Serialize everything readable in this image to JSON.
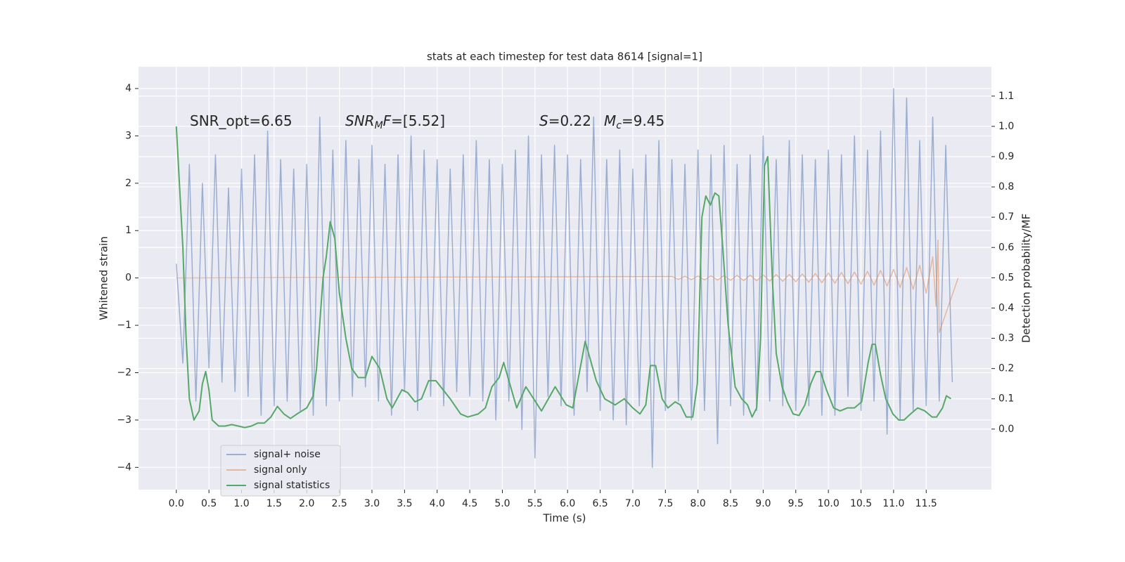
{
  "chart_data": {
    "type": "line",
    "title": "stats at each timestep for test data 8614 [signal=1]",
    "xlabel": "Time (s)",
    "ylabel": "Whitened strain",
    "y2label": "Detection probability/MF",
    "xlim": [
      -0.58,
      12.5
    ],
    "ylim": [
      -4.47,
      4.46
    ],
    "y2lim": [
      -0.2,
      1.197
    ],
    "xticks": [
      {
        "value": 0,
        "label": "0.0"
      },
      0.5,
      {
        "value": 1,
        "label": "1.0"
      },
      1.5,
      {
        "value": 2,
        "label": "2.0"
      },
      2.5,
      {
        "value": 3,
        "label": "3.0"
      },
      3.5,
      {
        "value": 4,
        "label": "4.0"
      },
      4.5,
      {
        "value": 5,
        "label": "5.0"
      },
      5.5,
      {
        "value": 6,
        "label": "6.0"
      },
      6.5,
      {
        "value": 7,
        "label": "7.0"
      },
      7.5,
      {
        "value": 8,
        "label": "8.0"
      },
      8.5,
      {
        "value": 9,
        "label": "9.0"
      },
      9.5,
      {
        "value": 10,
        "label": "10.0"
      },
      10.5,
      {
        "value": 11,
        "label": "11.0"
      },
      11.5
    ],
    "yticks": [
      {
        "value": -4,
        "label": "−4"
      },
      {
        "value": -3,
        "label": "−3"
      },
      {
        "value": -2,
        "label": "−2"
      },
      {
        "value": -1,
        "label": "−1"
      },
      0,
      1,
      2,
      3,
      4
    ],
    "y2ticks": [
      {
        "value": 0,
        "label": "0.0"
      },
      0.1,
      0.2,
      0.3,
      0.4,
      0.5,
      0.6,
      0.7,
      0.8,
      0.9,
      {
        "value": 1,
        "label": "1.0"
      },
      1.1
    ],
    "grid": true,
    "legend": "lower left",
    "annotations": [
      {
        "parts": [
          {
            "text": "SNR_opt=6.65"
          }
        ]
      },
      {
        "parts": [
          {
            "text": "SNR",
            "style": "italic"
          },
          {
            "text": "M",
            "style": "sub"
          },
          {
            "text": "F",
            "style": "italic"
          },
          {
            "text": "=[5.52]"
          }
        ]
      },
      {
        "parts": [
          {
            "text": "S",
            "style": "italic"
          },
          {
            "text": "=0.22"
          }
        ]
      },
      {
        "parts": [
          {
            "text": "M",
            "style": "italic"
          },
          {
            "text": "c",
            "style": "sub"
          },
          {
            "text": "=9.45"
          }
        ]
      }
    ],
    "series": [
      {
        "name": "signal+ noise",
        "color": "#4c72b0",
        "opacity": 0.5,
        "x": [
          0,
          0.1,
          0.2,
          0.3,
          0.4,
          0.5,
          0.6,
          0.7,
          0.8,
          0.9,
          1,
          1.1,
          1.2,
          1.3,
          1.4,
          1.5,
          1.6,
          1.7,
          1.8,
          1.9,
          2,
          2.1,
          2.2,
          2.3,
          2.4,
          2.5,
          2.6,
          2.7,
          2.8,
          2.9,
          3,
          3.1,
          3.2,
          3.3,
          3.4,
          3.5,
          3.6,
          3.7,
          3.8,
          3.9,
          4,
          4.1,
          4.2,
          4.3,
          4.4,
          4.5,
          4.6,
          4.7,
          4.8,
          4.9,
          5,
          5.1,
          5.2,
          5.3,
          5.4,
          5.5,
          5.6,
          5.7,
          5.8,
          5.9,
          6,
          6.1,
          6.2,
          6.3,
          6.4,
          6.5,
          6.6,
          6.7,
          6.8,
          6.9,
          7,
          7.1,
          7.2,
          7.3,
          7.4,
          7.5,
          7.6,
          7.7,
          7.8,
          7.9,
          8,
          8.1,
          8.2,
          8.3,
          8.4,
          8.5,
          8.6,
          8.7,
          8.8,
          8.9,
          9,
          9.1,
          9.2,
          9.3,
          9.4,
          9.5,
          9.6,
          9.7,
          9.8,
          9.9,
          10,
          10.1,
          10.2,
          10.3,
          10.4,
          10.5,
          10.6,
          10.7,
          10.8,
          10.9,
          11,
          11.1,
          11.2,
          11.3,
          11.4,
          11.5,
          11.6,
          11.7,
          11.8,
          11.9
        ],
        "values": [
          0.3,
          -1.8,
          2.4,
          -2.6,
          2.0,
          -1.9,
          2.6,
          -2.2,
          1.9,
          -2.4,
          2.3,
          -2.5,
          2.6,
          -2.9,
          3.1,
          -2.7,
          2.5,
          -2.6,
          2.3,
          -2.8,
          2.4,
          -2.9,
          3.4,
          -2.7,
          2.7,
          -2.6,
          2.9,
          -2.5,
          2.5,
          -2.3,
          2.8,
          -2.6,
          2.4,
          -2.9,
          2.6,
          -2.4,
          3.0,
          -2.8,
          2.7,
          -2.5,
          2.5,
          -2.7,
          2.3,
          -2.4,
          2.6,
          -2.5,
          2.9,
          -2.6,
          2.5,
          -3.0,
          2.4,
          -2.6,
          2.7,
          -3.2,
          3.0,
          -3.8,
          2.6,
          -2.5,
          2.8,
          -2.7,
          2.6,
          -2.9,
          2.5,
          -2.4,
          3.4,
          -2.8,
          2.5,
          -3.0,
          2.7,
          -3.1,
          2.3,
          -2.7,
          2.6,
          -4.0,
          2.9,
          -2.8,
          2.5,
          -2.6,
          2.4,
          -3.0,
          2.7,
          -2.8,
          2.6,
          -3.5,
          2.8,
          -2.7,
          2.4,
          -2.9,
          2.6,
          -2.8,
          3.0,
          -2.6,
          2.5,
          -2.7,
          2.9,
          -2.8,
          2.6,
          -2.7,
          2.5,
          -2.9,
          2.7,
          -2.9,
          2.6,
          -2.5,
          3.0,
          -2.8,
          2.7,
          -2.6,
          3.1,
          -3.3,
          4.0,
          -3.0,
          3.8,
          -2.8,
          2.9,
          -2.7,
          3.4,
          -2.6,
          2.8,
          -2.2
        ]
      },
      {
        "name": "signal only",
        "color": "#dd8452",
        "opacity": 0.5,
        "x": [
          0,
          7.6,
          7.7,
          7.8,
          7.9,
          8,
          8.1,
          8.2,
          8.3,
          8.4,
          8.5,
          8.6,
          8.7,
          8.8,
          8.9,
          9,
          9.1,
          9.2,
          9.3,
          9.4,
          9.5,
          9.6,
          9.7,
          9.8,
          9.9,
          10,
          10.1,
          10.2,
          10.3,
          10.4,
          10.5,
          10.6,
          10.7,
          10.8,
          10.9,
          11,
          11.1,
          11.2,
          11.3,
          11.4,
          11.5,
          11.6,
          11.65,
          11.68,
          11.7,
          11.99
        ],
        "values": [
          0,
          0.03,
          -0.03,
          0.035,
          -0.035,
          0.04,
          -0.04,
          0.045,
          -0.045,
          0.05,
          -0.05,
          0.055,
          -0.055,
          0.06,
          -0.06,
          0.065,
          -0.065,
          0.07,
          -0.07,
          0.075,
          -0.08,
          0.085,
          -0.09,
          0.095,
          -0.1,
          0.105,
          -0.11,
          0.115,
          -0.12,
          0.125,
          -0.13,
          0.14,
          -0.15,
          0.16,
          -0.17,
          0.18,
          -0.2,
          0.22,
          -0.24,
          0.27,
          -0.32,
          0.45,
          -0.6,
          0.8,
          -1.15,
          0
        ]
      },
      {
        "name": "signal statistics",
        "color": "#55a868",
        "axis": "y2",
        "x": [
          0,
          0.1,
          0.15,
          0.2,
          0.27,
          0.35,
          0.4,
          0.45,
          0.5,
          0.55,
          0.65,
          0.75,
          0.85,
          0.95,
          1.05,
          1.15,
          1.25,
          1.35,
          1.45,
          1.55,
          1.65,
          1.75,
          1.85,
          2,
          2.1,
          2.15,
          2.2,
          2.25,
          2.3,
          2.36,
          2.43,
          2.5,
          2.6,
          2.69,
          2.79,
          2.9,
          3,
          3.12,
          3.23,
          3.31,
          3.46,
          3.55,
          3.66,
          3.76,
          3.87,
          3.98,
          4.2,
          4.36,
          4.47,
          4.63,
          4.74,
          4.84,
          4.95,
          5.02,
          5.22,
          5.36,
          5.6,
          5.81,
          5.98,
          6.08,
          6.27,
          6.44,
          6.57,
          6.73,
          6.87,
          7,
          7.11,
          7.2,
          7.27,
          7.35,
          7.45,
          7.54,
          7.65,
          7.73,
          7.82,
          7.92,
          7.99,
          8.06,
          8.12,
          8.19,
          8.26,
          8.32,
          8.38,
          8.46,
          8.57,
          8.67,
          8.76,
          8.83,
          8.9,
          8.96,
          9.02,
          9.07,
          9.14,
          9.2,
          9.29,
          9.37,
          9.46,
          9.55,
          9.64,
          9.73,
          9.81,
          9.88,
          9.97,
          10.08,
          10.18,
          10.29,
          10.4,
          10.51,
          10.61,
          10.67,
          10.72,
          10.8,
          10.88,
          10.99,
          11.08,
          11.16,
          11.26,
          11.37,
          11.48,
          11.59,
          11.66,
          11.75,
          11.81,
          11.88
        ],
        "values": [
          1.0,
          0.6,
          0.3,
          0.1,
          0.03,
          0.06,
          0.15,
          0.19,
          0.13,
          0.03,
          0.01,
          0.01,
          0.015,
          0.01,
          0.005,
          0.01,
          0.02,
          0.02,
          0.04,
          0.075,
          0.05,
          0.035,
          0.05,
          0.07,
          0.11,
          0.2,
          0.35,
          0.5,
          0.57,
          0.685,
          0.63,
          0.45,
          0.3,
          0.2,
          0.17,
          0.17,
          0.24,
          0.2,
          0.1,
          0.07,
          0.13,
          0.12,
          0.09,
          0.1,
          0.16,
          0.16,
          0.1,
          0.05,
          0.04,
          0.05,
          0.07,
          0.14,
          0.17,
          0.22,
          0.07,
          0.14,
          0.06,
          0.14,
          0.08,
          0.07,
          0.29,
          0.16,
          0.1,
          0.08,
          0.1,
          0.07,
          0.05,
          0.08,
          0.21,
          0.21,
          0.1,
          0.07,
          0.09,
          0.08,
          0.04,
          0.04,
          0.15,
          0.7,
          0.77,
          0.74,
          0.78,
          0.77,
          0.6,
          0.35,
          0.14,
          0.1,
          0.08,
          0.04,
          0.07,
          0.3,
          0.87,
          0.9,
          0.5,
          0.25,
          0.14,
          0.09,
          0.05,
          0.045,
          0.08,
          0.15,
          0.19,
          0.19,
          0.13,
          0.07,
          0.06,
          0.07,
          0.07,
          0.09,
          0.22,
          0.28,
          0.28,
          0.18,
          0.1,
          0.05,
          0.03,
          0.03,
          0.05,
          0.07,
          0.06,
          0.04,
          0.04,
          0.07,
          0.11,
          0.1
        ]
      }
    ]
  }
}
